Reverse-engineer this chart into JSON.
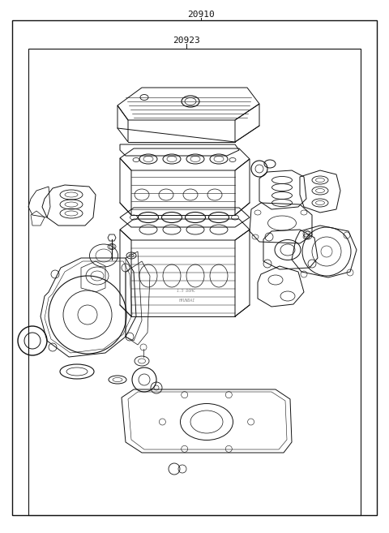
{
  "background_color": "#ffffff",
  "outer_border_color": "#000000",
  "inner_border_color": "#000000",
  "label_outer": "20910",
  "label_inner": "20923",
  "font_size_label": 8,
  "line_color": "#000000",
  "text_color": "#111111",
  "ec": "#111111",
  "lw": 0.7
}
